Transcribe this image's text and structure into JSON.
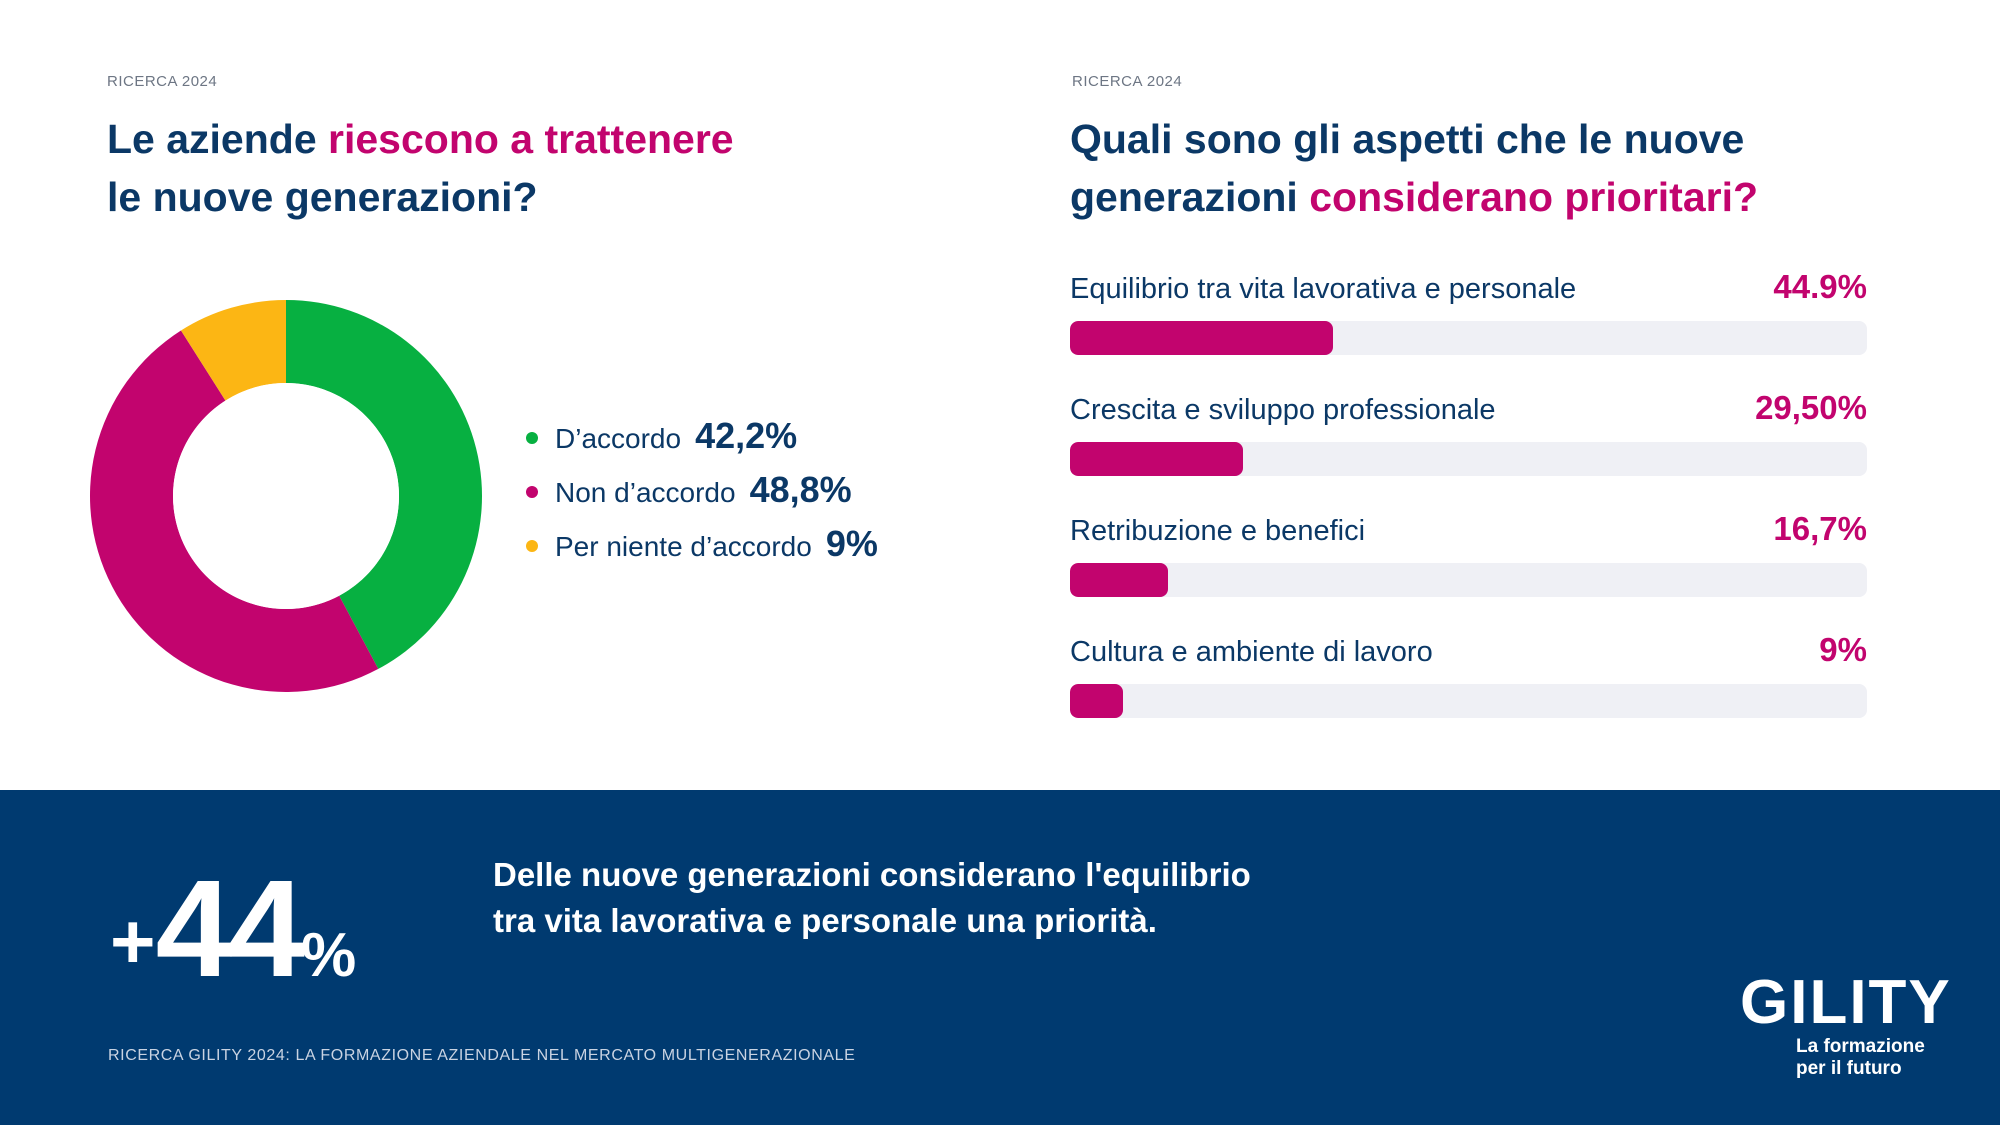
{
  "left": {
    "eyebrow": "RICERCA 2024",
    "title_part1": "Le aziende ",
    "title_highlight": "riescono a trattenere",
    "title_part2": "le nuove generazioni?"
  },
  "right": {
    "eyebrow": "RICERCA 2024",
    "title_part1": "Quali sono gli aspetti che le nuove generazioni ",
    "title_highlight": "considerano prioritari?"
  },
  "chart_data": [
    {
      "type": "pie",
      "donut": true,
      "legend_position": "right",
      "categories": [
        "D’accordo",
        "Non d’accordo",
        "Per niente d’accordo"
      ],
      "values": [
        42.2,
        48.8,
        9
      ],
      "labels": [
        "42,2%",
        "48,8%",
        "9%"
      ],
      "colors": [
        "#07b041",
        "#c2046e",
        "#fcb614"
      ]
    },
    {
      "type": "bar",
      "orientation": "horizontal",
      "categories": [
        "Equilibrio tra vita lavorativa e personale",
        "Crescita e sviluppo professionale",
        "Retribuzione e benefici",
        "Cultura e ambiente di lavoro"
      ],
      "values": [
        44.9,
        29.5,
        16.7,
        9
      ],
      "labels": [
        "44.9%",
        "29,50%",
        "16,7%",
        "9%"
      ],
      "xlim": [
        0,
        100
      ],
      "color": "#c2046e",
      "track_color": "#eff0f5"
    }
  ],
  "footer": {
    "stat_plus": "+",
    "stat_number": "44",
    "stat_percent": "%",
    "callout_line1": "Delle nuove generazioni considerano l'equilibrio",
    "callout_line2": "tra vita lavorativa e personale una priorità.",
    "source": "RICERCA GILITY 2024: LA FORMAZIONE AZIENDALE NEL MERCATO MULTIGENERAZIONALE",
    "background_color": "#003a70"
  },
  "logo": {
    "mark": "GILITY",
    "tagline_line1": "La formazione",
    "tagline_line2": "per il futuro"
  }
}
